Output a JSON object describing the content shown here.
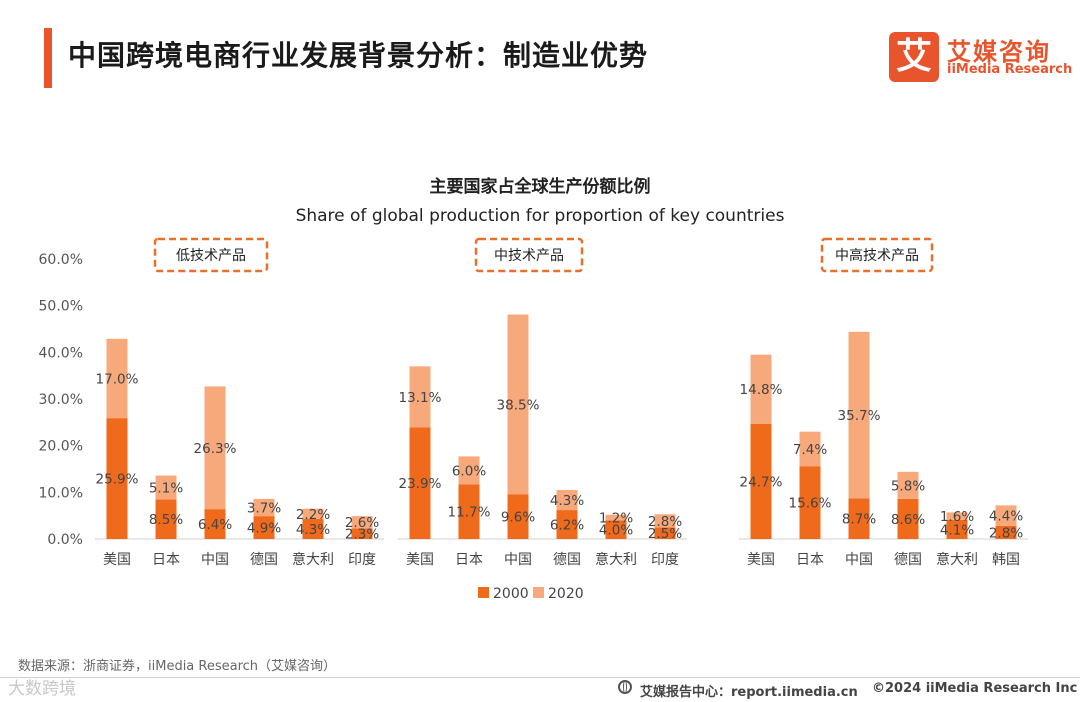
{
  "header": {
    "title": "中国跨境电商行业发展背景分析：制造业优势",
    "logo_mark": "艾",
    "logo_cn": "艾媒咨询",
    "logo_en": "iiMedia Research"
  },
  "chart_data": {
    "type": "bar",
    "stacked": true,
    "title": "主要国家占全球生产份额比例",
    "subtitle": "Share of global production for proportion of key countries",
    "yticks": [
      "0.0%",
      "10.0%",
      "20.0%",
      "30.0%",
      "40.0%",
      "50.0%",
      "60.0%"
    ],
    "ylim": [
      0,
      60
    ],
    "legend_position": "bottom",
    "series_meta": [
      {
        "name": "2000",
        "color": "#f06a1b"
      },
      {
        "name": "2020",
        "color": "#f7a97c"
      }
    ],
    "groups": [
      {
        "label": "低技术产品",
        "categories": [
          "美国",
          "日本",
          "中国",
          "德国",
          "意大利",
          "印度"
        ],
        "series": [
          {
            "name": "2000",
            "values": [
              25.9,
              8.5,
              6.4,
              4.9,
              4.3,
              2.3
            ]
          },
          {
            "name": "2020",
            "values": [
              17.0,
              5.1,
              26.3,
              3.7,
              2.2,
              2.6
            ]
          }
        ]
      },
      {
        "label": "中技术产品",
        "categories": [
          "美国",
          "日本",
          "中国",
          "德国",
          "意大利",
          "印度"
        ],
        "series": [
          {
            "name": "2000",
            "values": [
              23.9,
              11.7,
              9.6,
              6.2,
              4.0,
              2.5
            ]
          },
          {
            "name": "2020",
            "values": [
              13.1,
              6.0,
              38.5,
              4.3,
              1.2,
              2.8
            ]
          }
        ]
      },
      {
        "label": "中高技术产品",
        "categories": [
          "美国",
          "日本",
          "中国",
          "德国",
          "意大利",
          "韩国"
        ],
        "series": [
          {
            "name": "2000",
            "values": [
              24.7,
              15.6,
              8.7,
              8.6,
              4.1,
              2.8
            ]
          },
          {
            "name": "2020",
            "values": [
              14.8,
              7.4,
              35.7,
              5.8,
              1.6,
              4.4
            ]
          }
        ]
      }
    ]
  },
  "footer": {
    "source": "数据来源：浙商证券，iiMedia Research（艾媒咨询）",
    "watermark": "大数跨境",
    "report_site": "艾媒报告中心：report.iimedia.cn",
    "copyright": "©2024  iiMedia Research  Inc"
  }
}
